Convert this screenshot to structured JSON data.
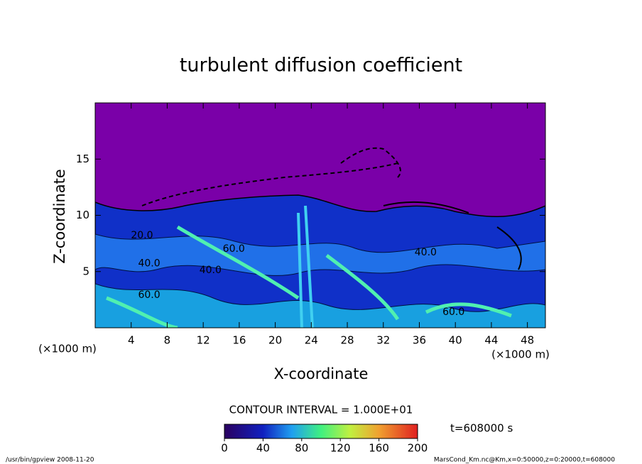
{
  "chart_data": {
    "type": "contour",
    "title": "turbulent diffusion coefficient",
    "x_label": "X-coordinate",
    "y_label": "Z-coordinate",
    "x_unit_label": "(×1000 m)",
    "y_unit_label": "(×1000 m)",
    "xlim": [
      0,
      50
    ],
    "xticks": [
      4,
      8,
      12,
      16,
      20,
      24,
      28,
      32,
      36,
      40,
      44,
      48
    ],
    "ylim": [
      0,
      20
    ],
    "yticks": [
      5,
      10,
      15
    ],
    "contour_labels": [
      {
        "text": "20.0",
        "x": 5.2,
        "y": 8.2
      },
      {
        "text": "40.0",
        "x": 6.0,
        "y": 5.7
      },
      {
        "text": "40.0",
        "x": 12.8,
        "y": 5.1
      },
      {
        "text": "60.0",
        "x": 6.0,
        "y": 2.9
      },
      {
        "text": "60.0",
        "x": 15.4,
        "y": 7.0
      },
      {
        "text": "40.0",
        "x": 36.7,
        "y": 6.7
      },
      {
        "text": "60.0",
        "x": 39.8,
        "y": 1.4
      }
    ],
    "contour_interval": "CONTOUR INTERVAL = 1.000E+01",
    "colorbar": {
      "clim": [
        0,
        200
      ],
      "ticks": [
        0,
        40,
        80,
        120,
        160,
        200
      ]
    },
    "time_label": "t=608000 s",
    "footer_left": "/usr/bin/gpview   2008-11-20",
    "footer_right": "MarsCond_Km.nc@Km,x=0:50000,z=0:20000,t=608000"
  }
}
